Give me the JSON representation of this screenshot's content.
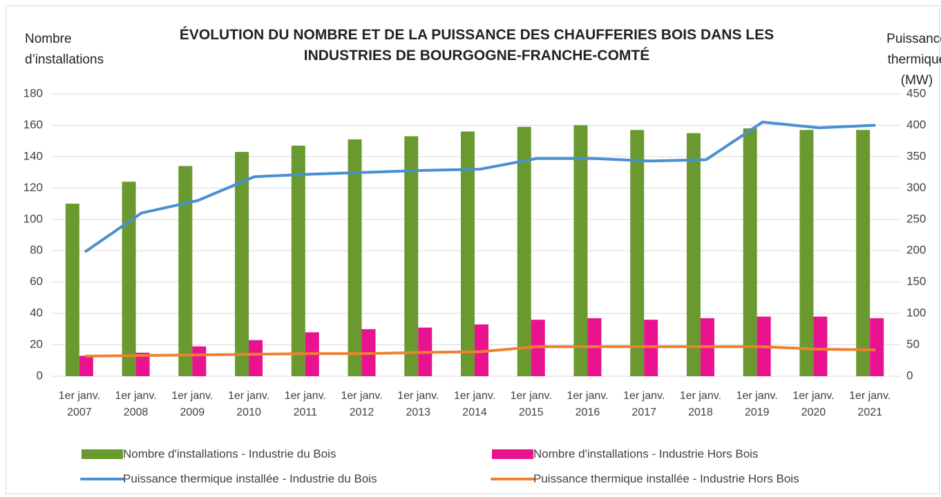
{
  "chart_data": {
    "type": "bar_line",
    "title": "ÉVOLUTION DU NOMBRE ET DE LA PUISSANCE DES CHAUFFERIES BOIS DANS LES INDUSTRIES DE BOURGOGNE-FRANCHE-COMTÉ",
    "y_label": "Nombre d’installations",
    "y2_label": "Puissance thermique (MW)",
    "categories": [
      "1er janv. 2007",
      "1er janv. 2008",
      "1er janv. 2009",
      "1er janv. 2010",
      "1er janv. 2011",
      "1er janv. 2012",
      "1er janv. 2013",
      "1er janv. 2014",
      "1er janv. 2015",
      "1er janv. 2016",
      "1er janv. 2017",
      "1er janv. 2018",
      "1er janv. 2019",
      "1er janv. 2020",
      "1er janv. 2021"
    ],
    "series": [
      {
        "name": "Nombre d'installations - Industrie du Bois",
        "type": "bar",
        "color": "#6a9a2f",
        "values": [
          110,
          124,
          134,
          143,
          147,
          151,
          153,
          156,
          159,
          160,
          157,
          155,
          158,
          157,
          157
        ]
      },
      {
        "name": "Nombre d'installations - Industrie Hors Bois",
        "type": "bar",
        "color": "#e9138f",
        "values": [
          13,
          15,
          19,
          23,
          28,
          30,
          31,
          33,
          36,
          37,
          36,
          37,
          38,
          38,
          37
        ]
      },
      {
        "name": "Puissance thermique installée - Industrie du Bois",
        "type": "line",
        "axis": "y2",
        "color": "#4a8fd0",
        "values": [
          198,
          260,
          280,
          318,
          322,
          325,
          328,
          330,
          347,
          347,
          343,
          345,
          405,
          396,
          400
        ]
      },
      {
        "name": "Puissance thermique installée - Industrie Hors Bois",
        "type": "line",
        "axis": "y2",
        "color": "#ee8130",
        "values": [
          32,
          33,
          34,
          35,
          36,
          36,
          38,
          39,
          47,
          47,
          47,
          47,
          47,
          43,
          42
        ]
      }
    ],
    "ylim": [
      0,
      180
    ],
    "yticks": [
      0,
      20,
      40,
      60,
      80,
      100,
      120,
      140,
      160,
      180
    ],
    "y2lim": [
      0,
      450
    ],
    "y2ticks": [
      0,
      50,
      100,
      150,
      200,
      250,
      300,
      350,
      400,
      450
    ],
    "grid": true
  }
}
